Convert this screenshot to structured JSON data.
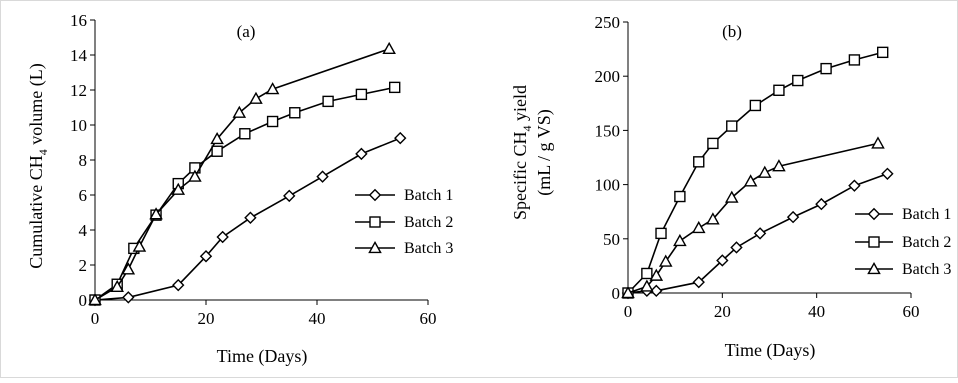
{
  "chart_data": [
    {
      "type": "line",
      "panel_label": "(a)",
      "ylabel_main": "Cumulative CH",
      "ylabel_sub": "4",
      "ylabel_tail": " volume (L)",
      "xlabel": "Time (Days)",
      "xlim": [
        0,
        60
      ],
      "ylim": [
        0,
        16
      ],
      "xticks": [
        "0",
        "20",
        "40",
        "60"
      ],
      "yticks": [
        "0",
        "2",
        "4",
        "6",
        "8",
        "10",
        "12",
        "14",
        "16"
      ],
      "grid": false,
      "legend_position": "right",
      "series": [
        {
          "name": "Batch 1",
          "marker": "diamond",
          "x": [
            0,
            6,
            15,
            20,
            23,
            28,
            35,
            41,
            48,
            55
          ],
          "y": [
            0,
            0.15,
            0.85,
            2.5,
            3.6,
            4.7,
            5.95,
            7.05,
            8.35,
            9.25
          ]
        },
        {
          "name": "Batch 2",
          "marker": "square",
          "x": [
            0,
            4,
            7,
            11,
            15,
            18,
            22,
            27,
            32,
            36,
            42,
            48,
            54
          ],
          "y": [
            0,
            0.9,
            2.95,
            4.85,
            6.65,
            7.55,
            8.5,
            9.5,
            10.2,
            10.7,
            11.35,
            11.75,
            12.15
          ]
        },
        {
          "name": "Batch 3",
          "marker": "triangle",
          "x": [
            0,
            4,
            6,
            8,
            11,
            15,
            18,
            22,
            26,
            29,
            32,
            53
          ],
          "y": [
            0,
            0.75,
            1.75,
            3.05,
            4.9,
            6.3,
            7.05,
            9.2,
            10.7,
            11.5,
            12.05,
            14.35
          ]
        }
      ]
    },
    {
      "type": "line",
      "panel_label": "(b)",
      "ylabel_line1_main": "Specific CH",
      "ylabel_line1_sub": "4",
      "ylabel_line1_tail": " yield",
      "ylabel_line2": "(mL / g VS)",
      "xlabel": "Time (Days)",
      "xlim": [
        0,
        60
      ],
      "ylim": [
        0,
        250
      ],
      "xticks": [
        "0",
        "20",
        "40",
        "60"
      ],
      "yticks": [
        "0",
        "50",
        "100",
        "150",
        "200",
        "250"
      ],
      "grid": false,
      "legend_position": "right",
      "series": [
        {
          "name": "Batch 1",
          "marker": "diamond",
          "x": [
            0,
            4,
            6,
            15,
            20,
            23,
            28,
            35,
            41,
            48,
            55
          ],
          "y": [
            0,
            2,
            2,
            10,
            30,
            42,
            55,
            70,
            82,
            99,
            110
          ]
        },
        {
          "name": "Batch 2",
          "marker": "square",
          "x": [
            0,
            4,
            7,
            11,
            15,
            18,
            22,
            27,
            32,
            36,
            42,
            48,
            54
          ],
          "y": [
            0,
            18,
            55,
            89,
            121,
            138,
            154,
            173,
            187,
            196,
            207,
            215,
            222
          ]
        },
        {
          "name": "Batch 3",
          "marker": "triangle",
          "x": [
            0,
            4,
            6,
            8,
            11,
            15,
            18,
            22,
            26,
            29,
            32,
            53
          ],
          "y": [
            0,
            6,
            16,
            29,
            48,
            60,
            68,
            88,
            103,
            111,
            117,
            138
          ]
        }
      ]
    }
  ]
}
